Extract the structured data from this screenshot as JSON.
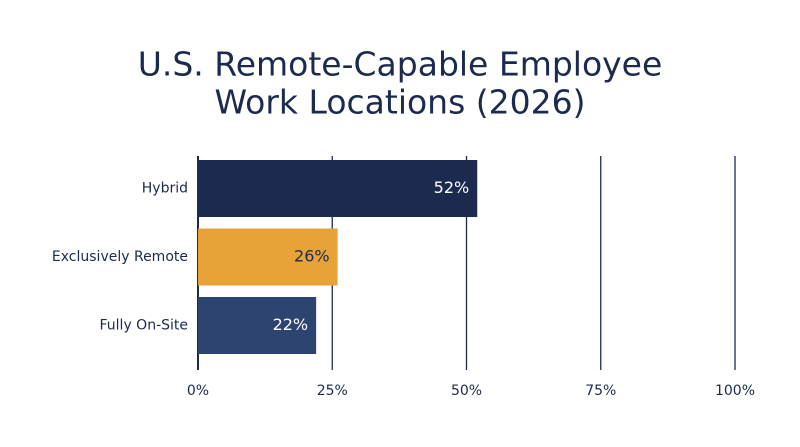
{
  "chart_data": {
    "type": "hbar",
    "title": [
      "U.S. Remote-Capable Employee",
      "Work Locations (2026)"
    ],
    "categories": [
      "Hybrid",
      "Exclusively Remote",
      "Fully On-Site"
    ],
    "values": [
      52,
      26,
      22
    ],
    "value_labels": [
      "52%",
      "26%",
      "22%"
    ],
    "colors": [
      "#1b2a4e",
      "#e8a23a",
      "#2e4470"
    ],
    "xlim": [
      0,
      100
    ],
    "xticks": [
      {
        "value": 0,
        "label": "0%"
      },
      {
        "value": 25,
        "label": "25%"
      },
      {
        "value": 50,
        "label": "50%"
      },
      {
        "value": 75,
        "label": "75%"
      },
      {
        "value": 100,
        "label": "100%"
      }
    ],
    "grid": true
  }
}
